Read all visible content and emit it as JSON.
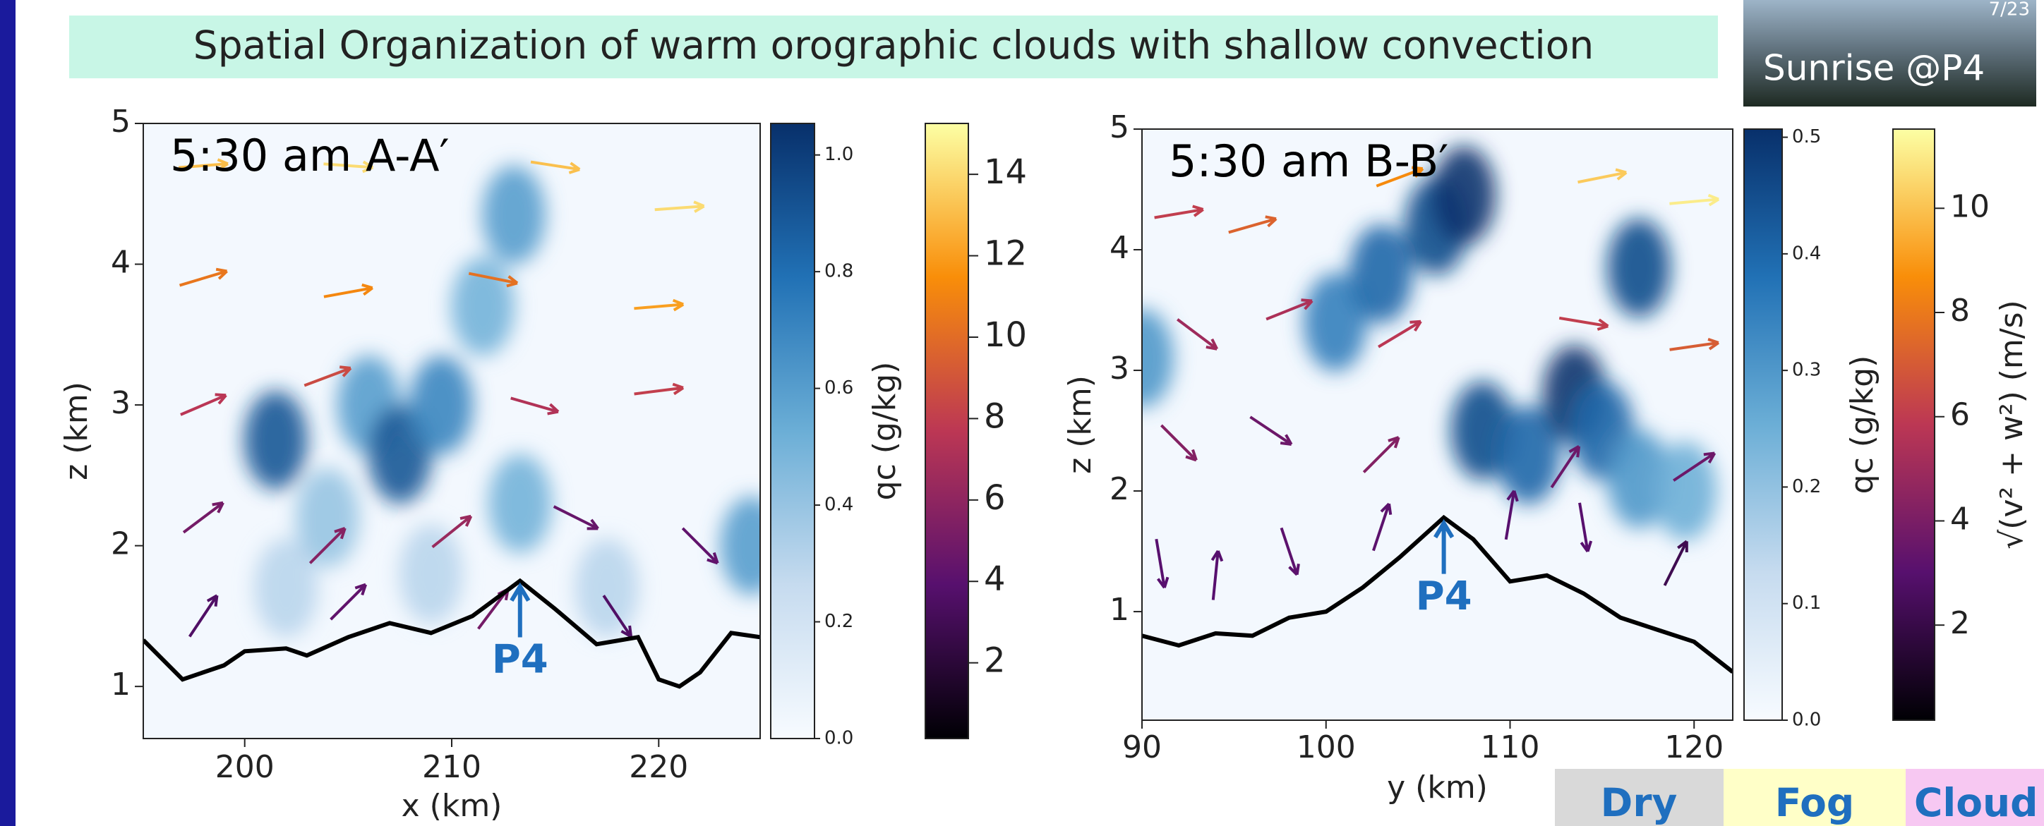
{
  "slide": {
    "title": "Spatial Organization of warm orographic clouds with shallow convection",
    "page": "7/23",
    "caption": "Sunrise @P4",
    "boxes": [
      "Dry",
      "Fog",
      "Cloud"
    ]
  },
  "chart_data": [
    {
      "type": "quiver",
      "title": "5:30 am A-A′",
      "xlabel": "x (km)",
      "ylabel": "z (km)",
      "xlim": [
        195.1,
        224.9
      ],
      "xticks": [
        200,
        210,
        220
      ],
      "ylim": [
        0.63,
        5
      ],
      "yticks": [
        1,
        2,
        3,
        4,
        5
      ],
      "terrain": {
        "x": [
          195.1,
          197,
          199,
          200,
          202,
          203,
          205,
          207,
          209,
          211,
          213.3,
          215,
          217,
          219,
          220,
          221,
          222,
          223.5,
          224.9
        ],
        "z": [
          1.33,
          1.05,
          1.15,
          1.25,
          1.27,
          1.22,
          1.35,
          1.45,
          1.38,
          1.5,
          1.75,
          1.55,
          1.3,
          1.35,
          1.05,
          1.0,
          1.1,
          1.38,
          1.35
        ]
      },
      "clouds": [
        [
          201.5,
          2.75,
          0.9
        ],
        [
          204,
          2.2,
          0.4
        ],
        [
          206,
          3.0,
          0.6
        ],
        [
          207.5,
          2.65,
          0.9
        ],
        [
          209.5,
          3.0,
          0.7
        ],
        [
          211.5,
          3.7,
          0.5
        ],
        [
          213,
          4.35,
          0.6
        ],
        [
          213.3,
          2.3,
          0.5
        ],
        [
          217.5,
          1.7,
          0.3
        ],
        [
          224.5,
          2.0,
          0.6
        ],
        [
          202,
          1.7,
          0.3
        ],
        [
          209,
          1.8,
          0.3
        ]
      ],
      "wind": [
        [
          198,
          4.7,
          13,
          1
        ],
        [
          205,
          4.7,
          14,
          -1
        ],
        [
          215,
          4.7,
          13,
          -2
        ],
        [
          221,
          4.4,
          14,
          1
        ],
        [
          198,
          3.9,
          10,
          3
        ],
        [
          205,
          3.8,
          11,
          2
        ],
        [
          212,
          3.9,
          10,
          -2
        ],
        [
          220,
          3.7,
          12,
          1
        ],
        [
          198,
          3.0,
          7,
          3
        ],
        [
          204,
          3.2,
          8,
          3
        ],
        [
          214,
          3.0,
          7,
          -2
        ],
        [
          220,
          3.1,
          8,
          1
        ],
        [
          198,
          2.2,
          4,
          3
        ],
        [
          204,
          2.0,
          4,
          4
        ],
        [
          210,
          2.1,
          5,
          4
        ],
        [
          216,
          2.2,
          4,
          -2
        ],
        [
          222,
          2.0,
          3,
          -3
        ],
        [
          198,
          1.5,
          2,
          3
        ],
        [
          205,
          1.6,
          3,
          3
        ],
        [
          212,
          1.55,
          3,
          4
        ],
        [
          218,
          1.5,
          2,
          -3
        ]
      ],
      "annotations": [
        {
          "text": "P4",
          "x": 213.3,
          "y": 1.75
        }
      ],
      "qc_colorbar": {
        "label": "qc (g/kg)",
        "lim": [
          0,
          1.054
        ],
        "ticks": [
          {
            "value": 0,
            "label": "0.0"
          },
          0.2,
          0.4,
          0.6,
          0.8,
          {
            "value": 1,
            "label": "1.0"
          }
        ]
      },
      "speed_colorbar": {
        "lim": [
          0.14,
          15.25
        ],
        "ticks": [
          2,
          4,
          6,
          8,
          10,
          12,
          14
        ]
      }
    },
    {
      "type": "quiver",
      "title": "5:30 am B-B′",
      "xlabel": "y (km)",
      "ylabel": "z (km)",
      "xlim": [
        90,
        122.1
      ],
      "xticks": [
        90,
        100,
        110,
        120
      ],
      "ylim": [
        0.1,
        5
      ],
      "yticks": [
        1,
        2,
        3,
        4,
        5
      ],
      "terrain": {
        "x": [
          90,
          92,
          94,
          96,
          98,
          100,
          102,
          104,
          106.4,
          108,
          110,
          112,
          114,
          116,
          118,
          120,
          122.1
        ],
        "z": [
          0.8,
          0.72,
          0.82,
          0.8,
          0.95,
          1.0,
          1.2,
          1.45,
          1.78,
          1.6,
          1.25,
          1.3,
          1.15,
          0.95,
          0.85,
          0.75,
          0.5
        ]
      },
      "clouds": [
        [
          100.5,
          3.4,
          0.35
        ],
        [
          103,
          3.8,
          0.4
        ],
        [
          106,
          4.2,
          0.45
        ],
        [
          107.5,
          4.45,
          0.5
        ],
        [
          117,
          3.85,
          0.45
        ],
        [
          108.5,
          2.5,
          0.45
        ],
        [
          111,
          2.3,
          0.4
        ],
        [
          113.5,
          2.8,
          0.5
        ],
        [
          115,
          2.5,
          0.4
        ],
        [
          117,
          2.1,
          0.3
        ],
        [
          119.5,
          2.0,
          0.25
        ],
        [
          90,
          3.1,
          0.3
        ]
      ],
      "wind": [
        [
          92,
          4.3,
          6,
          1
        ],
        [
          96,
          4.2,
          7,
          2
        ],
        [
          104,
          4.6,
          8,
          3
        ],
        [
          115,
          4.6,
          10,
          2
        ],
        [
          120,
          4.4,
          11,
          1
        ],
        [
          93,
          3.3,
          4,
          -3
        ],
        [
          98,
          3.5,
          5,
          2
        ],
        [
          104,
          3.3,
          5,
          3
        ],
        [
          114,
          3.4,
          6,
          -1
        ],
        [
          120,
          3.2,
          7,
          1
        ],
        [
          92,
          2.4,
          3,
          -3
        ],
        [
          97,
          2.5,
          3,
          -2
        ],
        [
          103,
          2.3,
          3,
          3
        ],
        [
          113,
          2.2,
          2,
          3
        ],
        [
          120,
          2.2,
          3,
          2
        ],
        [
          91,
          1.4,
          0.5,
          -3
        ],
        [
          94,
          1.3,
          0.3,
          3
        ],
        [
          98,
          1.5,
          1,
          -3
        ],
        [
          103,
          1.7,
          1,
          3
        ],
        [
          110,
          1.8,
          0.5,
          3
        ],
        [
          114,
          1.7,
          0.5,
          -3
        ],
        [
          119,
          1.4,
          1,
          2
        ]
      ],
      "annotations": [
        {
          "text": "P4",
          "x": 106.4,
          "y": 1.78
        }
      ],
      "qc_colorbar": {
        "label": "qc (g/kg)",
        "lim": [
          0,
          0.507
        ],
        "ticks": [
          {
            "value": 0,
            "label": "0.0"
          },
          0.1,
          0.2,
          0.3,
          0.4,
          0.5
        ]
      },
      "speed_colorbar": {
        "label": "√(v² + w²) (m/s)",
        "lim": [
          0.175,
          11.52
        ],
        "ticks": [
          2,
          4,
          6,
          8,
          10
        ]
      }
    }
  ]
}
